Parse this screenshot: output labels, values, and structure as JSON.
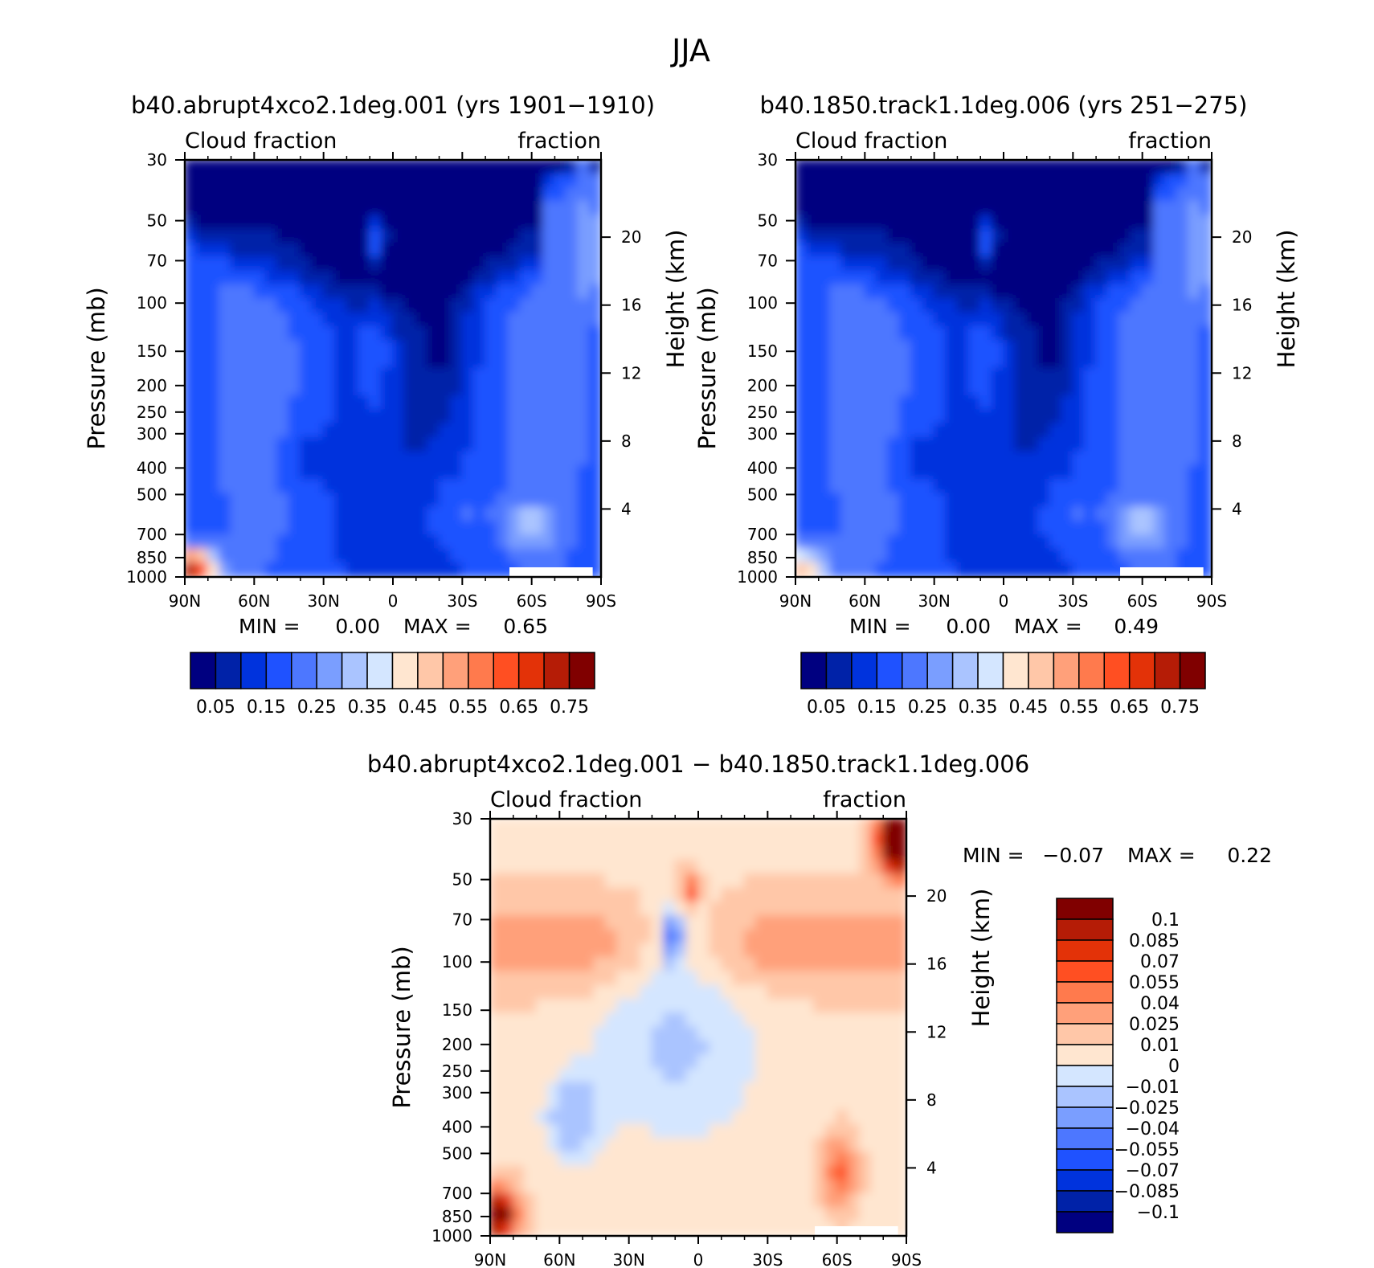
{
  "title": "JJA",
  "colors": {
    "abs_scale": [
      "#000080",
      "#0022a8",
      "#0033dd",
      "#1f52ff",
      "#4d77ff",
      "#7a9eff",
      "#aac4ff",
      "#d4e6ff",
      "#ffe6d0",
      "#ffc7a8",
      "#ffa07a",
      "#ff7a4d",
      "#ff4f22",
      "#e33208",
      "#b51c06",
      "#800000"
    ],
    "diff_scale": [
      "#000080",
      "#0022a8",
      "#0033dd",
      "#1f52ff",
      "#4d77ff",
      "#7a9eff",
      "#aac4ff",
      "#d4e6ff",
      "#ffe6d0",
      "#ffc7a8",
      "#ffa07a",
      "#ff7a4d",
      "#ff4f22",
      "#e33208",
      "#b51c06",
      "#800000"
    ]
  },
  "chart_data": [
    {
      "id": "panel1",
      "type": "heatmap",
      "title": "b40.abrupt4xco2.1deg.001 (yrs 1901−1910)",
      "label_left": "Cloud fraction",
      "label_right": "fraction",
      "ylabel": "Pressure (mb)",
      "y2label": "Height (km)",
      "x_ticks": [
        "90N",
        "60N",
        "30N",
        "0",
        "30S",
        "60S",
        "90S"
      ],
      "x_range": [
        90,
        -90
      ],
      "y_ticks": [
        "30",
        "50",
        "70",
        "100",
        "150",
        "200",
        "250",
        "300",
        "400",
        "500",
        "700",
        "850",
        "1000"
      ],
      "y_range": [
        30,
        1000
      ],
      "y2_ticks": [
        "20",
        "16",
        "12",
        "8",
        "4"
      ],
      "min_label": "MIN =",
      "min_value": "0.00",
      "max_label": "MAX =",
      "max_value": "0.65",
      "colorbar_labels": [
        "0.05",
        "0.15",
        "0.25",
        "0.35",
        "0.45",
        "0.55",
        "0.65",
        "0.75"
      ],
      "levels": [
        0.05,
        0.1,
        0.15,
        0.2,
        0.25,
        0.3,
        0.35,
        0.4,
        0.45,
        0.5,
        0.55,
        0.6,
        0.65,
        0.7,
        0.75
      ]
    },
    {
      "id": "panel2",
      "type": "heatmap",
      "title": "b40.1850.track1.1deg.006 (yrs 251−275)",
      "label_left": "Cloud fraction",
      "label_right": "fraction",
      "ylabel": "Pressure (mb)",
      "y2label": "Height (km)",
      "x_ticks": [
        "90N",
        "60N",
        "30N",
        "0",
        "30S",
        "60S",
        "90S"
      ],
      "x_range": [
        90,
        -90
      ],
      "y_ticks": [
        "30",
        "50",
        "70",
        "100",
        "150",
        "200",
        "250",
        "300",
        "400",
        "500",
        "700",
        "850",
        "1000"
      ],
      "y_range": [
        30,
        1000
      ],
      "y2_ticks": [
        "20",
        "16",
        "12",
        "8",
        "4"
      ],
      "min_label": "MIN =",
      "min_value": "0.00",
      "max_label": "MAX =",
      "max_value": "0.49",
      "colorbar_labels": [
        "0.05",
        "0.15",
        "0.25",
        "0.35",
        "0.45",
        "0.55",
        "0.65",
        "0.75"
      ],
      "levels": [
        0.05,
        0.1,
        0.15,
        0.2,
        0.25,
        0.3,
        0.35,
        0.4,
        0.45,
        0.5,
        0.55,
        0.6,
        0.65,
        0.7,
        0.75
      ]
    },
    {
      "id": "panel3",
      "type": "heatmap",
      "title": "b40.abrupt4xco2.1deg.001 − b40.1850.track1.1deg.006",
      "label_left": "Cloud fraction",
      "label_right": "fraction",
      "ylabel": "Pressure (mb)",
      "y2label": "Height (km)",
      "x_ticks": [
        "90N",
        "60N",
        "30N",
        "0",
        "30S",
        "60S",
        "90S"
      ],
      "x_range": [
        90,
        -90
      ],
      "y_ticks": [
        "30",
        "50",
        "70",
        "100",
        "150",
        "200",
        "250",
        "300",
        "400",
        "500",
        "700",
        "850",
        "1000"
      ],
      "y_range": [
        30,
        1000
      ],
      "y2_ticks": [
        "20",
        "16",
        "12",
        "8",
        "4"
      ],
      "min_label": "MIN =",
      "min_value": "−0.07",
      "max_label": "MAX =",
      "max_value": "0.22",
      "colorbar_labels": [
        "0.1",
        "0.085",
        "0.07",
        "0.055",
        "0.04",
        "0.025",
        "0.01",
        "0",
        "−0.01",
        "−0.025",
        "−0.04",
        "−0.055",
        "−0.07",
        "−0.085",
        "−0.1"
      ],
      "levels": [
        -0.1,
        -0.085,
        -0.07,
        -0.055,
        -0.04,
        -0.025,
        -0.01,
        0,
        0.01,
        0.025,
        0.04,
        0.055,
        0.07,
        0.085,
        0.1
      ]
    }
  ]
}
